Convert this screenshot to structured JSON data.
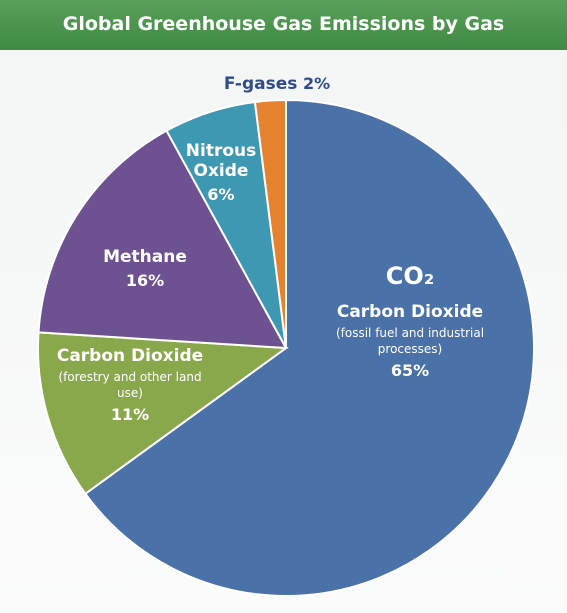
{
  "chart_data": {
    "type": "pie",
    "title": "Global Greenhouse Gas Emissions by Gas",
    "categories": [
      "Carbon Dioxide",
      "Carbon Dioxide",
      "Methane",
      "Nitrous Oxide",
      "F-gases"
    ],
    "values": [
      65,
      11,
      16,
      6,
      2
    ],
    "value_labels": [
      "65%",
      "11%",
      "16%",
      "6%",
      "2%"
    ],
    "colors": [
      "#4a71a8",
      "#89a84c",
      "#6e5191",
      "#3f98b1",
      "#e5822f"
    ],
    "formula": "CO₂",
    "notes": [
      "(fossil fuel and industrial processes)",
      "(forestry and other land use)"
    ]
  }
}
